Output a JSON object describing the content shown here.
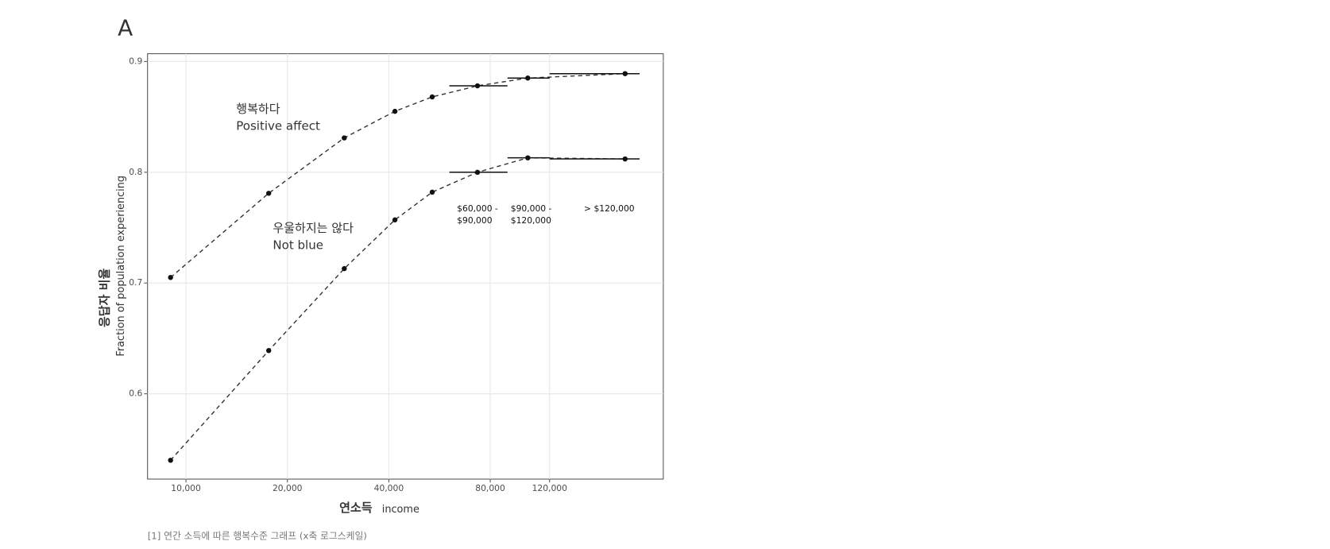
{
  "chart_data": {
    "type": "line",
    "panel_label": "A",
    "x_label": "연소득",
    "x_label_en": "income",
    "y_label": "응답자 비율",
    "y_label_en": "Fraction of population experiencing",
    "caption": "[1] 연간 소득에 따른 행복수준 그래프 (x축 로그스케일)",
    "x_log": true,
    "grid": true,
    "xlim": [
      7690,
      261000
    ],
    "ylim": [
      0.523,
      0.907
    ],
    "xticks": [
      {
        "value": 10000,
        "label": "10,000"
      },
      {
        "value": 20000,
        "label": "20,000"
      },
      {
        "value": 40000,
        "label": "40,000"
      },
      {
        "value": 80000,
        "label": "80,000"
      },
      {
        "value": 120000,
        "label": "120,000"
      }
    ],
    "yticks": [
      0.6,
      0.7,
      0.8,
      0.9
    ],
    "x": [
      9000,
      17600,
      29500,
      41700,
      53800,
      73300,
      103400,
      201000
    ],
    "series": [
      {
        "name": "Positive affect",
        "name_ko": "행복하다",
        "color": "#333333",
        "values": [
          0.705,
          0.781,
          0.831,
          0.855,
          0.868,
          0.878,
          0.885,
          0.889
        ]
      },
      {
        "name": "Not blue",
        "name_ko": "우울하지는 않다",
        "color": "#333333",
        "values": [
          0.54,
          0.639,
          0.713,
          0.757,
          0.782,
          0.8,
          0.813,
          0.812
        ]
      }
    ],
    "bin_edges": [
      60500,
      90000,
      120000,
      222000
    ],
    "bin_labels": [
      [
        "$60,000 -",
        "$90,000"
      ],
      [
        "$90,000 -",
        "$120,000"
      ],
      [
        "> $120,000"
      ]
    ]
  }
}
